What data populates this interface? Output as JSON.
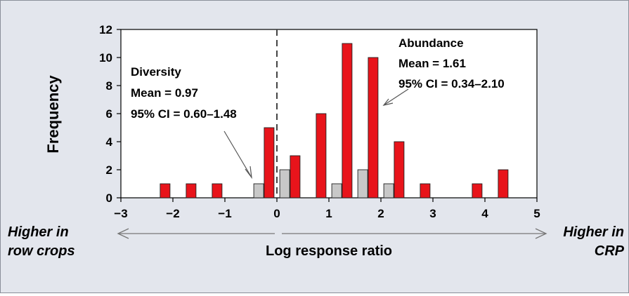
{
  "chart_data": {
    "type": "bar",
    "xlabel": "Log response ratio",
    "ylabel": "Frequency",
    "xlim": [
      -3,
      5
    ],
    "ylim": [
      0,
      12
    ],
    "x_ticks": [
      -3,
      -2,
      -1,
      0,
      1,
      2,
      3,
      4,
      5
    ],
    "x_tick_labels": [
      "−3",
      "−2",
      "−1",
      "0",
      "1",
      "2",
      "3",
      "4",
      "5"
    ],
    "y_ticks": [
      0,
      2,
      4,
      6,
      8,
      10,
      12
    ],
    "y_tick_labels": [
      "0",
      "2",
      "4",
      "6",
      "8",
      "10",
      "12"
    ],
    "reference_line": {
      "x": 0,
      "style": "dashed"
    },
    "grid": false,
    "series": [
      {
        "key": "diversity",
        "color": "#c8c8c8",
        "x": [
          -0.35,
          0.15,
          1.15,
          1.65,
          2.15
        ],
        "values": [
          1,
          2,
          1,
          2,
          1
        ]
      },
      {
        "key": "abundance",
        "color": "#e8141b",
        "x": [
          -2.15,
          -1.65,
          -1.15,
          -0.15,
          0.35,
          0.85,
          1.35,
          1.85,
          2.35,
          2.85,
          3.85,
          4.35
        ],
        "values": [
          1,
          1,
          1,
          5,
          3,
          6,
          11,
          10,
          4,
          1,
          1,
          2
        ]
      }
    ],
    "annotations": {
      "diversity": {
        "title": "Diversity",
        "mean": "Mean = 0.97",
        "ci": "95% CI = 0.60–1.48"
      },
      "abundance": {
        "title": "Abundance",
        "mean": "Mean = 1.61",
        "ci": "95% CI = 0.34–2.10"
      }
    },
    "direction_labels": {
      "left_line1": "Higher in",
      "left_line2": "row crops",
      "right_line1": "Higher in",
      "right_line2": "CRP"
    }
  }
}
